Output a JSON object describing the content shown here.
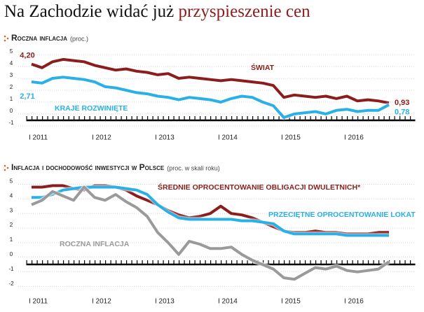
{
  "title": {
    "lead": "Na Zachodzie widać już",
    "highlight": "przyspieszenie cen"
  },
  "chart_data": [
    {
      "type": "line",
      "title": "Roczna inflacja",
      "subtitle": "(proc.)",
      "x": [
        "2011-01",
        "2011-03",
        "2011-05",
        "2011-07",
        "2011-09",
        "2011-11",
        "2012-01",
        "2012-03",
        "2012-05",
        "2012-07",
        "2012-09",
        "2012-11",
        "2013-01",
        "2013-03",
        "2013-05",
        "2013-07",
        "2013-09",
        "2013-11",
        "2014-01",
        "2014-03",
        "2014-05",
        "2014-07",
        "2014-09",
        "2014-11",
        "2015-01",
        "2015-03",
        "2015-05",
        "2015-07",
        "2015-09",
        "2015-11",
        "2016-01",
        "2016-03",
        "2016-05",
        "2016-07",
        "2016-09"
      ],
      "series": [
        {
          "name": "ŚWIAT",
          "color": "#8c1d1d",
          "values": [
            4.2,
            3.9,
            4.4,
            4.6,
            4.5,
            4.4,
            4.1,
            3.9,
            3.7,
            3.8,
            3.6,
            3.5,
            3.3,
            3.4,
            3.0,
            3.1,
            3.0,
            2.9,
            2.8,
            2.9,
            2.8,
            2.7,
            2.6,
            2.4,
            1.4,
            1.6,
            1.5,
            1.4,
            1.5,
            1.3,
            1.5,
            1.1,
            1.2,
            1.1,
            0.93
          ],
          "value_labels": [
            "4,20",
            null,
            null,
            null,
            null,
            null,
            null,
            null,
            null,
            null,
            null,
            null,
            null,
            null,
            null,
            null,
            null,
            null,
            null,
            null,
            null,
            null,
            null,
            null,
            null,
            null,
            null,
            null,
            null,
            null,
            null,
            null,
            null,
            null,
            "0,93"
          ]
        },
        {
          "name": "KRAJE ROZWINIĘTE",
          "color": "#29b0e6",
          "values": [
            2.71,
            2.6,
            3.0,
            3.1,
            3.0,
            2.9,
            2.7,
            2.3,
            2.2,
            2.0,
            1.8,
            1.7,
            1.5,
            1.4,
            1.2,
            1.4,
            1.3,
            1.2,
            1.0,
            1.3,
            1.5,
            1.4,
            1.0,
            0.7,
            -0.3,
            0.0,
            0.1,
            0.2,
            0.0,
            0.3,
            0.4,
            0.2,
            0.3,
            0.3,
            0.78
          ],
          "value_labels": [
            "2,71",
            null,
            null,
            null,
            null,
            null,
            null,
            null,
            null,
            null,
            null,
            null,
            null,
            null,
            null,
            null,
            null,
            null,
            null,
            null,
            null,
            null,
            null,
            null,
            null,
            null,
            null,
            null,
            null,
            null,
            null,
            null,
            null,
            null,
            "0,78"
          ]
        }
      ],
      "xlim": [
        "2010-12",
        "2017-02"
      ],
      "xticks": [
        {
          "value": "2011-01",
          "label": "I 2011"
        },
        {
          "value": "2012-01",
          "label": "I 2012"
        },
        {
          "value": "2013-01",
          "label": "I 2013"
        },
        {
          "value": "2014-01",
          "label": "I 2014"
        },
        {
          "value": "2015-01",
          "label": "I 2015"
        },
        {
          "value": "2016-01",
          "label": "I 2016"
        }
      ],
      "ylim": [
        -1.3,
        5.3
      ],
      "yticks": [
        -1,
        0,
        1,
        2,
        3,
        4,
        5
      ],
      "grid": true
    },
    {
      "type": "line",
      "title": "Inflacja i dochodowość inwestycji w Polsce",
      "subtitle": "(proc. w skali roku)",
      "x": [
        "2011-01",
        "2011-03",
        "2011-05",
        "2011-07",
        "2011-09",
        "2011-11",
        "2012-01",
        "2012-03",
        "2012-05",
        "2012-07",
        "2012-09",
        "2012-11",
        "2013-01",
        "2013-03",
        "2013-05",
        "2013-07",
        "2013-09",
        "2013-11",
        "2014-01",
        "2014-03",
        "2014-05",
        "2014-07",
        "2014-09",
        "2014-11",
        "2015-01",
        "2015-03",
        "2015-05",
        "2015-07",
        "2015-09",
        "2015-11",
        "2016-01",
        "2016-03",
        "2016-05",
        "2016-07",
        "2016-09"
      ],
      "series": [
        {
          "name": "ŚREDNIE OPROCENTOWANIE OBLIGACJI DWULETNICH*",
          "color": "#8c1d1d",
          "values": [
            4.8,
            4.8,
            4.9,
            4.9,
            4.7,
            4.6,
            4.9,
            4.9,
            4.8,
            4.6,
            4.2,
            3.9,
            3.6,
            3.2,
            2.9,
            2.7,
            2.8,
            3.0,
            3.5,
            3.0,
            2.9,
            2.7,
            2.4,
            2.1,
            1.8,
            1.7,
            1.7,
            1.8,
            1.7,
            1.7,
            1.6,
            1.6,
            1.6,
            1.7,
            1.7
          ]
        },
        {
          "name": "PRZECIĘTNE OPROCENTOWANIE LOKAT",
          "color": "#29b0e6",
          "values": [
            4.1,
            4.1,
            4.3,
            4.6,
            4.7,
            4.8,
            4.8,
            4.8,
            4.8,
            4.7,
            4.6,
            4.3,
            3.6,
            3.1,
            2.7,
            2.6,
            2.6,
            2.6,
            2.6,
            2.6,
            2.5,
            2.5,
            2.4,
            2.3,
            1.8,
            1.6,
            1.6,
            1.6,
            1.6,
            1.6,
            1.5,
            1.5,
            1.5,
            1.5,
            1.5
          ]
        },
        {
          "name": "ROCZNA INFLACJA",
          "color": "#9a9a9a",
          "values": [
            3.6,
            3.9,
            4.5,
            4.2,
            3.9,
            4.8,
            4.1,
            3.9,
            4.3,
            3.8,
            3.4,
            2.8,
            1.7,
            1.0,
            0.2,
            1.1,
            0.9,
            0.6,
            0.6,
            0.7,
            0.2,
            -0.2,
            -0.5,
            -0.8,
            -1.4,
            -1.5,
            -1.1,
            -0.7,
            -0.8,
            -0.6,
            -0.9,
            -1.0,
            -0.9,
            -0.8,
            -0.3
          ]
        }
      ],
      "xlim": [
        "2010-12",
        "2017-02"
      ],
      "xticks": [
        {
          "value": "2011-01",
          "label": "I 2011"
        },
        {
          "value": "2012-01",
          "label": "I 2012"
        },
        {
          "value": "2013-01",
          "label": "I 2013"
        },
        {
          "value": "2014-01",
          "label": "I 2014"
        },
        {
          "value": "2015-01",
          "label": "I 2015"
        },
        {
          "value": "2016-01",
          "label": "I 2016"
        }
      ],
      "ylim": [
        -2.4,
        5.4
      ],
      "yticks": [
        -2,
        -1,
        0,
        1,
        2,
        3,
        4,
        5
      ],
      "grid": true
    }
  ]
}
